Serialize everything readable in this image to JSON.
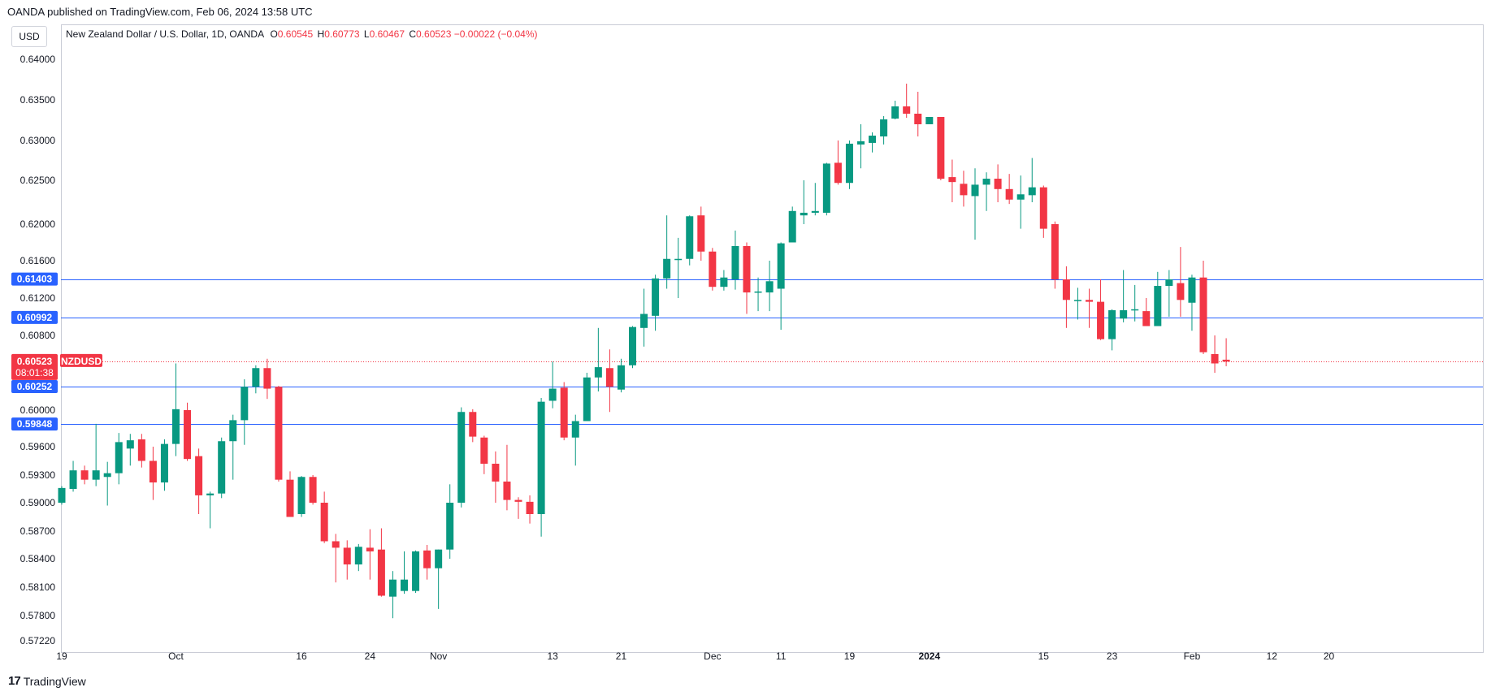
{
  "publish_line": "OANDA published on TradingView.com, Feb 06, 2024 13:58 UTC",
  "currency_button": "USD",
  "legend": {
    "instrument": "New Zealand Dollar / U.S. Dollar, 1D, OANDA",
    "o_label": "O",
    "o_value": "0.60545",
    "h_label": "H",
    "h_value": "0.60773",
    "l_label": "L",
    "l_value": "0.60467",
    "c_label": "C",
    "c_value": "0.60523",
    "change": "−0.00022 (−0.04%)"
  },
  "footer": {
    "logo": "17",
    "brand": "TradingView"
  },
  "colors": {
    "up": "#089981",
    "down": "#f23645",
    "level_line": "#2962ff",
    "grid": "#f0f3fa"
  },
  "chart_data": {
    "type": "candlestick",
    "title": "New Zealand Dollar / U.S. Dollar, 1D, OANDA",
    "ylim": [
      0.5722,
      0.6412
    ],
    "y_ticks": [
      {
        "value": 0.64,
        "label": "0.64000"
      },
      {
        "value": 0.635,
        "label": "0.63500"
      },
      {
        "value": 0.63,
        "label": "0.63000"
      },
      {
        "value": 0.625,
        "label": "0.62500"
      },
      {
        "value": 0.62,
        "label": "0.62000"
      },
      {
        "value": 0.616,
        "label": "0.61600"
      },
      {
        "value": 0.612,
        "label": "0.61200"
      },
      {
        "value": 0.608,
        "label": "0.60800"
      },
      {
        "value": 0.6,
        "label": "0.60000"
      },
      {
        "value": 0.596,
        "label": "0.59600"
      },
      {
        "value": 0.593,
        "label": "0.59300"
      },
      {
        "value": 0.59,
        "label": "0.59000"
      },
      {
        "value": 0.587,
        "label": "0.58700"
      },
      {
        "value": 0.584,
        "label": "0.58400"
      },
      {
        "value": 0.581,
        "label": "0.58100"
      },
      {
        "value": 0.578,
        "label": "0.57800"
      },
      {
        "value": 0.5722,
        "label": "0.57220"
      }
    ],
    "x_ticks": [
      {
        "index": 0,
        "label": "19",
        "bold": false
      },
      {
        "index": 10,
        "label": "Oct",
        "bold": false
      },
      {
        "index": 21,
        "label": "16",
        "bold": false
      },
      {
        "index": 27,
        "label": "24",
        "bold": false
      },
      {
        "index": 33,
        "label": "Nov",
        "bold": false
      },
      {
        "index": 43,
        "label": "13",
        "bold": false
      },
      {
        "index": 49,
        "label": "21",
        "bold": false
      },
      {
        "index": 57,
        "label": "Dec",
        "bold": false
      },
      {
        "index": 63,
        "label": "11",
        "bold": false
      },
      {
        "index": 69,
        "label": "19",
        "bold": false
      },
      {
        "index": 76,
        "label": "2024",
        "bold": true
      },
      {
        "index": 86,
        "label": "15",
        "bold": false
      },
      {
        "index": 92,
        "label": "23",
        "bold": false
      },
      {
        "index": 99,
        "label": "Feb",
        "bold": false
      },
      {
        "index": 106,
        "label": "12",
        "bold": false
      },
      {
        "index": 111,
        "label": "20",
        "bold": false
      }
    ],
    "horizontal_levels": [
      {
        "value": 0.61403,
        "label": "0.61403"
      },
      {
        "value": 0.60992,
        "label": "0.60992"
      },
      {
        "value": 0.60252,
        "label": "0.60252"
      },
      {
        "value": 0.59848,
        "label": "0.59848"
      }
    ],
    "current_price": {
      "value": 0.60523,
      "label": "0.60523",
      "countdown": "08:01:38",
      "symbol": "NZDUSD"
    },
    "candles": [
      {
        "o": 0.59,
        "h": 0.5918,
        "l": 0.5898,
        "c": 0.5916
      },
      {
        "o": 0.5915,
        "h": 0.5945,
        "l": 0.5912,
        "c": 0.5935
      },
      {
        "o": 0.5935,
        "h": 0.594,
        "l": 0.592,
        "c": 0.5925
      },
      {
        "o": 0.5925,
        "h": 0.5985,
        "l": 0.5918,
        "c": 0.5935
      },
      {
        "o": 0.5928,
        "h": 0.5944,
        "l": 0.5897,
        "c": 0.5932
      },
      {
        "o": 0.5932,
        "h": 0.5975,
        "l": 0.592,
        "c": 0.5965
      },
      {
        "o": 0.5958,
        "h": 0.5974,
        "l": 0.594,
        "c": 0.5967
      },
      {
        "o": 0.5968,
        "h": 0.5974,
        "l": 0.5938,
        "c": 0.5945
      },
      {
        "o": 0.5945,
        "h": 0.596,
        "l": 0.5903,
        "c": 0.5922
      },
      {
        "o": 0.5922,
        "h": 0.5968,
        "l": 0.5913,
        "c": 0.5963
      },
      {
        "o": 0.5963,
        "h": 0.605,
        "l": 0.595,
        "c": 0.6001
      },
      {
        "o": 0.6,
        "h": 0.6008,
        "l": 0.5945,
        "c": 0.5947
      },
      {
        "o": 0.595,
        "h": 0.5958,
        "l": 0.5888,
        "c": 0.5908
      },
      {
        "o": 0.5908,
        "h": 0.5912,
        "l": 0.5873,
        "c": 0.591
      },
      {
        "o": 0.591,
        "h": 0.597,
        "l": 0.5905,
        "c": 0.5966
      },
      {
        "o": 0.5966,
        "h": 0.5995,
        "l": 0.5925,
        "c": 0.5989
      },
      {
        "o": 0.5989,
        "h": 0.6033,
        "l": 0.5962,
        "c": 0.6025
      },
      {
        "o": 0.6025,
        "h": 0.6048,
        "l": 0.6018,
        "c": 0.6045
      },
      {
        "o": 0.6045,
        "h": 0.6055,
        "l": 0.6012,
        "c": 0.6023
      },
      {
        "o": 0.6025,
        "h": 0.6026,
        "l": 0.5923,
        "c": 0.5925
      },
      {
        "o": 0.5925,
        "h": 0.5934,
        "l": 0.5885,
        "c": 0.5885
      },
      {
        "o": 0.5888,
        "h": 0.5929,
        "l": 0.5885,
        "c": 0.5928
      },
      {
        "o": 0.5928,
        "h": 0.593,
        "l": 0.5898,
        "c": 0.59
      },
      {
        "o": 0.59,
        "h": 0.5912,
        "l": 0.5857,
        "c": 0.5859
      },
      {
        "o": 0.5859,
        "h": 0.5867,
        "l": 0.5815,
        "c": 0.5852
      },
      {
        "o": 0.5852,
        "h": 0.586,
        "l": 0.5818,
        "c": 0.5834
      },
      {
        "o": 0.5834,
        "h": 0.5856,
        "l": 0.5827,
        "c": 0.5853
      },
      {
        "o": 0.5852,
        "h": 0.5872,
        "l": 0.5818,
        "c": 0.5848
      },
      {
        "o": 0.585,
        "h": 0.5873,
        "l": 0.58,
        "c": 0.5801
      },
      {
        "o": 0.58,
        "h": 0.5827,
        "l": 0.5774,
        "c": 0.5818
      },
      {
        "o": 0.5806,
        "h": 0.5848,
        "l": 0.5803,
        "c": 0.5818
      },
      {
        "o": 0.5806,
        "h": 0.5849,
        "l": 0.5804,
        "c": 0.5848
      },
      {
        "o": 0.5849,
        "h": 0.5855,
        "l": 0.5818,
        "c": 0.583
      },
      {
        "o": 0.583,
        "h": 0.585,
        "l": 0.5787,
        "c": 0.585
      },
      {
        "o": 0.585,
        "h": 0.592,
        "l": 0.584,
        "c": 0.59
      },
      {
        "o": 0.59,
        "h": 0.6003,
        "l": 0.5895,
        "c": 0.5998
      },
      {
        "o": 0.5998,
        "h": 0.6001,
        "l": 0.5965,
        "c": 0.5971
      },
      {
        "o": 0.597,
        "h": 0.5972,
        "l": 0.5931,
        "c": 0.5942
      },
      {
        "o": 0.5942,
        "h": 0.5955,
        "l": 0.59,
        "c": 0.5923
      },
      {
        "o": 0.5923,
        "h": 0.5962,
        "l": 0.5892,
        "c": 0.5903
      },
      {
        "o": 0.5903,
        "h": 0.5906,
        "l": 0.5883,
        "c": 0.5901
      },
      {
        "o": 0.5901,
        "h": 0.5908,
        "l": 0.5878,
        "c": 0.5888
      },
      {
        "o": 0.5888,
        "h": 0.6013,
        "l": 0.5864,
        "c": 0.6009
      },
      {
        "o": 0.601,
        "h": 0.6052,
        "l": 0.6002,
        "c": 0.6023
      },
      {
        "o": 0.6024,
        "h": 0.603,
        "l": 0.5967,
        "c": 0.597
      },
      {
        "o": 0.597,
        "h": 0.5995,
        "l": 0.594,
        "c": 0.5988
      },
      {
        "o": 0.5988,
        "h": 0.604,
        "l": 0.5988,
        "c": 0.6035
      },
      {
        "o": 0.6035,
        "h": 0.6088,
        "l": 0.602,
        "c": 0.6046
      },
      {
        "o": 0.6045,
        "h": 0.6065,
        "l": 0.5998,
        "c": 0.6025
      },
      {
        "o": 0.6022,
        "h": 0.6055,
        "l": 0.6019,
        "c": 0.6048
      },
      {
        "o": 0.6048,
        "h": 0.609,
        "l": 0.6045,
        "c": 0.6089
      },
      {
        "o": 0.6088,
        "h": 0.613,
        "l": 0.6068,
        "c": 0.6103
      },
      {
        "o": 0.6101,
        "h": 0.6145,
        "l": 0.6085,
        "c": 0.6141
      },
      {
        "o": 0.6141,
        "h": 0.621,
        "l": 0.613,
        "c": 0.6162
      },
      {
        "o": 0.6162,
        "h": 0.6185,
        "l": 0.612,
        "c": 0.6162
      },
      {
        "o": 0.6162,
        "h": 0.621,
        "l": 0.6155,
        "c": 0.6209
      },
      {
        "o": 0.621,
        "h": 0.622,
        "l": 0.616,
        "c": 0.617
      },
      {
        "o": 0.617,
        "h": 0.6174,
        "l": 0.6128,
        "c": 0.6132
      },
      {
        "o": 0.6132,
        "h": 0.615,
        "l": 0.6128,
        "c": 0.6142
      },
      {
        "o": 0.614,
        "h": 0.6193,
        "l": 0.6129,
        "c": 0.6176
      },
      {
        "o": 0.6176,
        "h": 0.618,
        "l": 0.6103,
        "c": 0.6126
      },
      {
        "o": 0.6126,
        "h": 0.6142,
        "l": 0.6106,
        "c": 0.6127
      },
      {
        "o": 0.6126,
        "h": 0.616,
        "l": 0.6106,
        "c": 0.6138
      },
      {
        "o": 0.613,
        "h": 0.618,
        "l": 0.6086,
        "c": 0.6179
      },
      {
        "o": 0.618,
        "h": 0.622,
        "l": 0.618,
        "c": 0.6215
      },
      {
        "o": 0.621,
        "h": 0.625,
        "l": 0.62,
        "c": 0.6213
      },
      {
        "o": 0.6213,
        "h": 0.6247,
        "l": 0.621,
        "c": 0.6215
      },
      {
        "o": 0.6213,
        "h": 0.6272,
        "l": 0.621,
        "c": 0.6271
      },
      {
        "o": 0.6272,
        "h": 0.63,
        "l": 0.6245,
        "c": 0.6247
      },
      {
        "o": 0.6247,
        "h": 0.63,
        "l": 0.624,
        "c": 0.6296
      },
      {
        "o": 0.6295,
        "h": 0.632,
        "l": 0.6265,
        "c": 0.6299
      },
      {
        "o": 0.6297,
        "h": 0.631,
        "l": 0.6285,
        "c": 0.6306
      },
      {
        "o": 0.6305,
        "h": 0.633,
        "l": 0.6295,
        "c": 0.6326
      },
      {
        "o": 0.6327,
        "h": 0.6349,
        "l": 0.6326,
        "c": 0.6342
      },
      {
        "o": 0.6342,
        "h": 0.637,
        "l": 0.6328,
        "c": 0.6333
      },
      {
        "o": 0.6333,
        "h": 0.636,
        "l": 0.6305,
        "c": 0.632
      },
      {
        "o": 0.632,
        "h": 0.6329,
        "l": 0.632,
        "c": 0.6329
      },
      {
        "o": 0.6329,
        "h": 0.6329,
        "l": 0.625,
        "c": 0.6252
      },
      {
        "o": 0.6254,
        "h": 0.6276,
        "l": 0.6225,
        "c": 0.6248
      },
      {
        "o": 0.6246,
        "h": 0.6262,
        "l": 0.622,
        "c": 0.6233
      },
      {
        "o": 0.6232,
        "h": 0.6265,
        "l": 0.6183,
        "c": 0.6245
      },
      {
        "o": 0.6245,
        "h": 0.626,
        "l": 0.6215,
        "c": 0.6252
      },
      {
        "o": 0.6252,
        "h": 0.627,
        "l": 0.6225,
        "c": 0.624
      },
      {
        "o": 0.624,
        "h": 0.6258,
        "l": 0.6223,
        "c": 0.6228
      },
      {
        "o": 0.6228,
        "h": 0.6256,
        "l": 0.6195,
        "c": 0.6234
      },
      {
        "o": 0.6233,
        "h": 0.6278,
        "l": 0.6225,
        "c": 0.6242
      },
      {
        "o": 0.6242,
        "h": 0.6244,
        "l": 0.6185,
        "c": 0.6195
      },
      {
        "o": 0.62,
        "h": 0.6203,
        "l": 0.613,
        "c": 0.614
      },
      {
        "o": 0.614,
        "h": 0.6154,
        "l": 0.6088,
        "c": 0.6118
      },
      {
        "o": 0.6118,
        "h": 0.6131,
        "l": 0.6097,
        "c": 0.6118
      },
      {
        "o": 0.6118,
        "h": 0.613,
        "l": 0.6088,
        "c": 0.6116
      },
      {
        "o": 0.6116,
        "h": 0.614,
        "l": 0.6075,
        "c": 0.6076
      },
      {
        "o": 0.6076,
        "h": 0.6108,
        "l": 0.6064,
        "c": 0.6107
      },
      {
        "o": 0.6098,
        "h": 0.615,
        "l": 0.6094,
        "c": 0.6107
      },
      {
        "o": 0.6107,
        "h": 0.6134,
        "l": 0.6095,
        "c": 0.6108
      },
      {
        "o": 0.6106,
        "h": 0.612,
        "l": 0.609,
        "c": 0.609
      },
      {
        "o": 0.609,
        "h": 0.6148,
        "l": 0.609,
        "c": 0.6133
      },
      {
        "o": 0.6133,
        "h": 0.615,
        "l": 0.61,
        "c": 0.614
      },
      {
        "o": 0.6136,
        "h": 0.6175,
        "l": 0.61,
        "c": 0.6118
      },
      {
        "o": 0.6115,
        "h": 0.6145,
        "l": 0.6085,
        "c": 0.6142
      },
      {
        "o": 0.6142,
        "h": 0.616,
        "l": 0.606,
        "c": 0.6062
      },
      {
        "o": 0.606,
        "h": 0.608,
        "l": 0.604,
        "c": 0.605
      },
      {
        "o": 0.6054,
        "h": 0.6077,
        "l": 0.6047,
        "c": 0.6052
      }
    ]
  }
}
